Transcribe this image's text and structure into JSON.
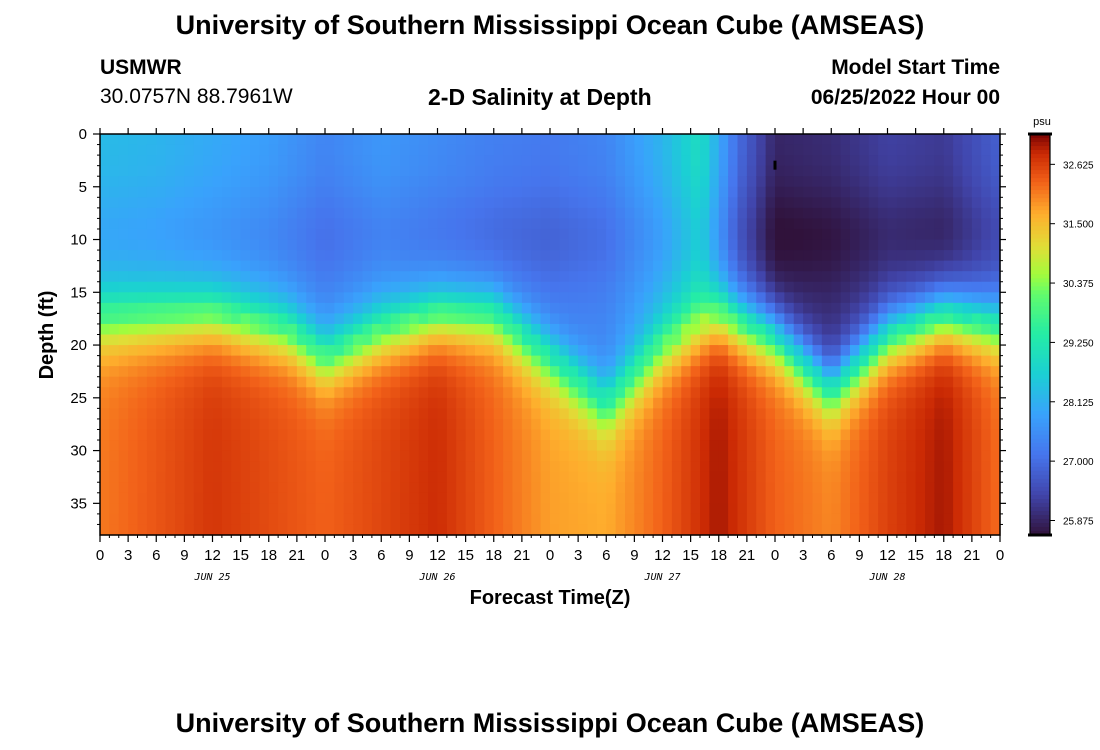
{
  "header": {
    "title": "University of Southern Mississippi Ocean Cube (AMSEAS)",
    "station": "USMWR",
    "coords": "30.0757N  88.7961W",
    "plot_title": "2-D Salinity at Depth",
    "start_label": "Model Start Time",
    "start_value": "06/25/2022 Hour 00"
  },
  "footer": {
    "title": "University of Southern Mississippi Ocean Cube (AMSEAS)"
  },
  "chart_data": {
    "type": "heatmap",
    "title": "2-D Salinity at Depth",
    "xlabel": "Forecast Time(Z)",
    "ylabel": "Depth (ft)",
    "x_range_hours": [
      0,
      96
    ],
    "y_range_ft": [
      0,
      38
    ],
    "x_tick_labels": [
      "0",
      "3",
      "6",
      "9",
      "12",
      "15",
      "18",
      "21",
      "0",
      "3",
      "6",
      "9",
      "12",
      "15",
      "18",
      "21",
      "0",
      "3",
      "6",
      "9",
      "12",
      "15",
      "18",
      "21",
      "0",
      "3",
      "6",
      "9",
      "12",
      "15",
      "18",
      "21",
      "0"
    ],
    "y_ticks": [
      0,
      5,
      10,
      15,
      20,
      25,
      30,
      35
    ],
    "y_tick_labels": [
      "0",
      "5",
      "10",
      "15",
      "20",
      "25",
      "30",
      "35"
    ],
    "date_labels": [
      {
        "label": "JUN 25",
        "hour": 12
      },
      {
        "label": "JUN 26",
        "hour": 36
      },
      {
        "label": "JUN 27",
        "hour": 60
      },
      {
        "label": "JUN 28",
        "hour": 84
      }
    ],
    "colorbar": {
      "unit": "psu",
      "min": 25.6,
      "max": 33.2,
      "tick_values": [
        32.625,
        31.5,
        30.375,
        29.25,
        28.125,
        27.0,
        25.875
      ],
      "tick_labels": [
        "32.625",
        "31.500",
        "30.375",
        "29.250",
        "28.125",
        "27.000",
        "25.875"
      ]
    },
    "halocline_depth_ft_by_hour": [
      [
        0,
        17.5
      ],
      [
        12,
        17.0
      ],
      [
        20,
        18.5
      ],
      [
        24,
        21.0
      ],
      [
        30,
        18.5
      ],
      [
        36,
        17.0
      ],
      [
        42,
        17.0
      ],
      [
        48,
        21.0
      ],
      [
        54,
        25.5
      ],
      [
        60,
        20.0
      ],
      [
        66,
        17.0
      ],
      [
        72,
        19.0
      ],
      [
        78,
        24.0
      ],
      [
        84,
        19.0
      ],
      [
        90,
        17.0
      ],
      [
        96,
        18.0
      ]
    ],
    "surface_salinity_psu_by_hour": [
      [
        0,
        28.3
      ],
      [
        6,
        28.2
      ],
      [
        12,
        28.0
      ],
      [
        18,
        27.8
      ],
      [
        24,
        27.4
      ],
      [
        30,
        27.7
      ],
      [
        36,
        27.5
      ],
      [
        42,
        27.3
      ],
      [
        48,
        27.2
      ],
      [
        54,
        27.4
      ],
      [
        60,
        28.2
      ],
      [
        64,
        29.0
      ],
      [
        68,
        27.0
      ],
      [
        72,
        25.9
      ],
      [
        78,
        26.0
      ],
      [
        84,
        26.3
      ],
      [
        90,
        26.2
      ],
      [
        96,
        26.8
      ]
    ],
    "bottom_salinity_psu_by_hour": [
      [
        0,
        32.1
      ],
      [
        12,
        32.7
      ],
      [
        24,
        32.3
      ],
      [
        36,
        32.8
      ],
      [
        48,
        31.8
      ],
      [
        54,
        31.7
      ],
      [
        60,
        32.3
      ],
      [
        66,
        33.0
      ],
      [
        72,
        32.3
      ],
      [
        78,
        32.0
      ],
      [
        84,
        32.6
      ],
      [
        90,
        33.0
      ],
      [
        96,
        32.2
      ]
    ],
    "marker": {
      "hour": 72,
      "depth_ft": 3
    }
  }
}
